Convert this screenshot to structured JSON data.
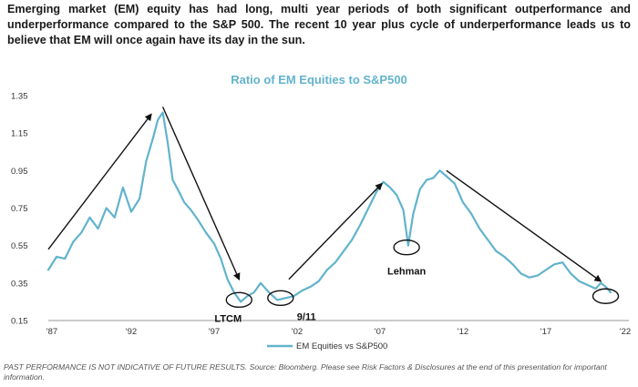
{
  "intro_text": "Emerging market (EM) equity has had long, multi year periods of both significant outperformance and underperformance compared to the S&P 500.  The recent 10 year plus cycle of underperformance leads us to believe that EM will once again have its day in the sun.",
  "footnote": "PAST PERFORMANCE IS NOT INDICATIVE OF FUTURE RESULTS. Source: Bloomberg. Please see Risk Factors & Disclosures at the end of this presentation for important information.",
  "colors": {
    "series": "#62b3cc",
    "title": "#62b3cc",
    "arrows": "#111111"
  },
  "chart_data": {
    "type": "line",
    "title": "Ratio of EM Equities to S&P500",
    "xlabel": "",
    "ylabel": "",
    "xlim": [
      1987,
      2022
    ],
    "ylim": [
      0.15,
      1.35
    ],
    "yticks": [
      "1.35",
      "1.15",
      "0.95",
      "0.75",
      "0.55",
      "0.35",
      "0.15"
    ],
    "xticks": [
      "'87",
      "'92",
      "'97",
      "'02",
      "'07",
      "'12",
      "'17",
      "'22"
    ],
    "legend": "bottom-center",
    "series": [
      {
        "name": "EM Equities vs S&P500",
        "x": [
          1987.0,
          1987.5,
          1988.0,
          1988.5,
          1989.0,
          1989.5,
          1990.0,
          1990.5,
          1991.0,
          1991.5,
          1992.0,
          1992.5,
          1992.9,
          1993.3,
          1993.6,
          1993.9,
          1994.2,
          1994.5,
          1994.8,
          1995.2,
          1995.6,
          1996.0,
          1996.5,
          1997.0,
          1997.4,
          1997.8,
          1998.2,
          1998.6,
          1999.0,
          1999.4,
          1999.8,
          2000.3,
          2000.8,
          2001.3,
          2001.8,
          2002.3,
          2002.8,
          2003.3,
          2003.8,
          2004.3,
          2004.8,
          2005.3,
          2005.8,
          2006.3,
          2006.8,
          2007.2,
          2007.6,
          2008.0,
          2008.4,
          2008.7,
          2009.0,
          2009.4,
          2009.8,
          2010.2,
          2010.6,
          2011.0,
          2011.5,
          2012.0,
          2012.5,
          2013.0,
          2013.5,
          2014.0,
          2014.5,
          2015.0,
          2015.5,
          2016.0,
          2016.5,
          2017.0,
          2017.5,
          2018.0,
          2018.5,
          2019.0,
          2019.5,
          2020.0,
          2020.3,
          2020.6,
          2020.9
        ],
        "values": [
          0.42,
          0.49,
          0.48,
          0.57,
          0.62,
          0.7,
          0.64,
          0.75,
          0.7,
          0.86,
          0.73,
          0.8,
          1.0,
          1.12,
          1.22,
          1.26,
          1.1,
          0.9,
          0.85,
          0.78,
          0.74,
          0.69,
          0.62,
          0.56,
          0.48,
          0.37,
          0.3,
          0.25,
          0.28,
          0.3,
          0.35,
          0.3,
          0.26,
          0.27,
          0.28,
          0.31,
          0.33,
          0.36,
          0.42,
          0.46,
          0.52,
          0.58,
          0.66,
          0.75,
          0.84,
          0.89,
          0.86,
          0.82,
          0.74,
          0.55,
          0.72,
          0.85,
          0.9,
          0.91,
          0.95,
          0.92,
          0.88,
          0.78,
          0.72,
          0.64,
          0.58,
          0.52,
          0.49,
          0.45,
          0.4,
          0.38,
          0.39,
          0.42,
          0.45,
          0.46,
          0.4,
          0.36,
          0.34,
          0.32,
          0.35,
          0.33,
          0.3
        ]
      }
    ],
    "annotations": [
      {
        "label": "LTCM",
        "x": 1998.5,
        "y": 0.26
      },
      {
        "label": "9/11",
        "x": 2001.0,
        "y": 0.27
      },
      {
        "label": "Lehman",
        "x": 2008.6,
        "y": 0.54
      },
      {
        "label": "",
        "x": 2020.6,
        "y": 0.28
      }
    ],
    "arrows": [
      {
        "from": [
          1987.0,
          0.53
        ],
        "to": [
          1993.2,
          1.25
        ]
      },
      {
        "from": [
          1993.9,
          1.29
        ],
        "to": [
          1998.5,
          0.37
        ]
      },
      {
        "from": [
          2001.5,
          0.37
        ],
        "to": [
          2007.1,
          0.88
        ]
      },
      {
        "from": [
          2011.0,
          0.95
        ],
        "to": [
          2020.3,
          0.36
        ]
      }
    ]
  }
}
